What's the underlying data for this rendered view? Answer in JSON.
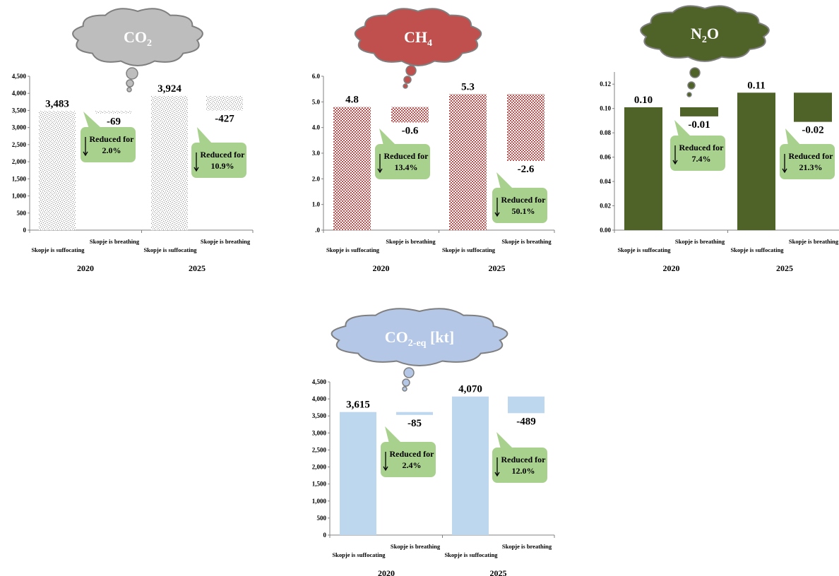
{
  "chart_data": [
    {
      "type": "bar",
      "title": "CO2",
      "title_main": "CO",
      "title_sub": "2",
      "cloud_color": "#bdbdbd",
      "bar_style": "speckle",
      "bar_color": "#9a9a9a",
      "ylim": [
        0,
        4500
      ],
      "yticks": [
        "0",
        "500",
        "1,000",
        "1,500",
        "2,000",
        "2,500",
        "3,000",
        "3,500",
        "4,000",
        "4,500"
      ],
      "ytick_values": [
        0,
        500,
        1000,
        1500,
        2000,
        2500,
        3000,
        3500,
        4000,
        4500
      ],
      "groups": [
        {
          "label": "2020",
          "suffocating": {
            "label": "Skopje is suffocating",
            "value": 3483,
            "display": "3,483"
          },
          "breathing": {
            "label": "Skopje is breathing",
            "value": -69,
            "display": "-69"
          },
          "callout": {
            "line1": "Reduced for",
            "line2": "2.0%"
          }
        },
        {
          "label": "2025",
          "suffocating": {
            "label": "Skopje is suffocating",
            "value": 3924,
            "display": "3,924"
          },
          "breathing": {
            "label": "Skopje is breathing",
            "value": -427,
            "display": "-427"
          },
          "callout": {
            "line1": "Reduced for",
            "line2": "10.9%"
          }
        }
      ]
    },
    {
      "type": "bar",
      "title": "CH4",
      "title_main": "CH",
      "title_sub": "4",
      "cloud_color": "#c0504d",
      "bar_style": "checker",
      "bar_color": "#c0504d",
      "ylim": [
        0,
        6
      ],
      "yticks": [
        ".0",
        "1.0",
        "2.0",
        "3.0",
        "4.0",
        "5.0",
        "6.0"
      ],
      "ytick_values": [
        0,
        1,
        2,
        3,
        4,
        5,
        6
      ],
      "groups": [
        {
          "label": "2020",
          "suffocating": {
            "label": "Skopje is suffocating",
            "value": 4.8,
            "display": "4.8"
          },
          "breathing": {
            "label": "Skopje is breathing",
            "value": -0.6,
            "display": "-0.6"
          },
          "callout": {
            "line1": "Reduced for",
            "line2": "13.4%"
          }
        },
        {
          "label": "2025",
          "suffocating": {
            "label": "Skopje is suffocating",
            "value": 5.3,
            "display": "5.3"
          },
          "breathing": {
            "label": "Skopje is breathing",
            "value": -2.6,
            "display": "-2.6"
          },
          "callout": {
            "line1": "Reduced for",
            "line2": "50.1%"
          }
        }
      ]
    },
    {
      "type": "bar",
      "title": "N2O",
      "title_main": "N",
      "title_sub": "2",
      "title_tail": "O",
      "cloud_color": "#4f6228",
      "bar_style": "solid",
      "bar_color": "#4f6228",
      "ylim": [
        0,
        0.13
      ],
      "yticks": [
        "0.00",
        "0.02",
        "0.04",
        "0.06",
        "0.08",
        "0.10",
        "0.12"
      ],
      "ytick_values": [
        0,
        0.02,
        0.04,
        0.06,
        0.08,
        0.1,
        0.12
      ],
      "groups": [
        {
          "label": "2020",
          "suffocating": {
            "label": "Skopje is suffocating",
            "value": 0.101,
            "display": "0.10"
          },
          "breathing": {
            "label": "Skopje is breathing",
            "value": -0.0075,
            "display": "-0.01"
          },
          "callout": {
            "line1": "Reduced for",
            "line2": "7.4%"
          }
        },
        {
          "label": "2025",
          "suffocating": {
            "label": "Skopje is suffocating",
            "value": 0.113,
            "display": "0.11"
          },
          "breathing": {
            "label": "Skopje is breathing",
            "value": -0.024,
            "display": "-0.02"
          },
          "callout": {
            "line1": "Reduced for",
            "line2": "21.3%"
          }
        }
      ]
    },
    {
      "type": "bar",
      "title": "CO2-eq [kt]",
      "title_main": "CO",
      "title_sub": "2-eq",
      "title_tail": " [kt]",
      "cloud_color": "#b4c7e7",
      "bar_style": "solid",
      "bar_color": "#bdd7ee",
      "ylim": [
        0,
        4500
      ],
      "yticks": [
        "0",
        "500",
        "1,000",
        "1,500",
        "2,000",
        "2,500",
        "3,000",
        "3,500",
        "4,000",
        "4,500"
      ],
      "ytick_values": [
        0,
        500,
        1000,
        1500,
        2000,
        2500,
        3000,
        3500,
        4000,
        4500
      ],
      "groups": [
        {
          "label": "2020",
          "suffocating": {
            "label": "Skopje is suffocating",
            "value": 3615,
            "display": "3,615"
          },
          "breathing": {
            "label": "Skopje is breathing",
            "value": -85,
            "display": "-85"
          },
          "callout": {
            "line1": "Reduced for",
            "line2": "2.4%"
          }
        },
        {
          "label": "2025",
          "suffocating": {
            "label": "Skopje is suffocating",
            "value": 4070,
            "display": "4,070"
          },
          "breathing": {
            "label": "Skopje is breathing",
            "value": -489,
            "display": "-489"
          },
          "callout": {
            "line1": "Reduced for",
            "line2": "12.0%"
          }
        }
      ]
    }
  ],
  "colors": {
    "callout_fill": "#a9d18e",
    "axis": "#808080",
    "text": "#000000"
  }
}
